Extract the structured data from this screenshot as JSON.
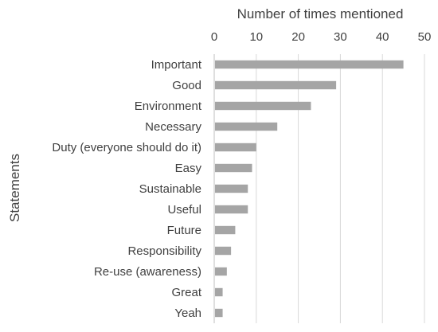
{
  "chart_data": {
    "type": "bar",
    "orientation": "horizontal",
    "categories": [
      "Important",
      "Good",
      "Environment",
      "Necessary",
      "Duty (everyone should do it)",
      "Easy",
      "Sustainable",
      "Useful",
      "Future",
      "Responsibility",
      "Re-use (awareness)",
      "Great",
      "Yeah"
    ],
    "values": [
      45,
      29,
      23,
      15,
      10,
      9,
      8,
      8,
      5,
      4,
      3,
      2,
      2
    ],
    "xlabel": "Number of times mentioned",
    "ylabel": "Statements",
    "xlim": [
      0,
      50
    ],
    "xticks": [
      "0",
      "10",
      "20",
      "30",
      "40",
      "50"
    ],
    "x_axis_position": "top",
    "grid": true,
    "bar_color": "#a5a5a5",
    "grid_color": "#d9d9d9"
  }
}
